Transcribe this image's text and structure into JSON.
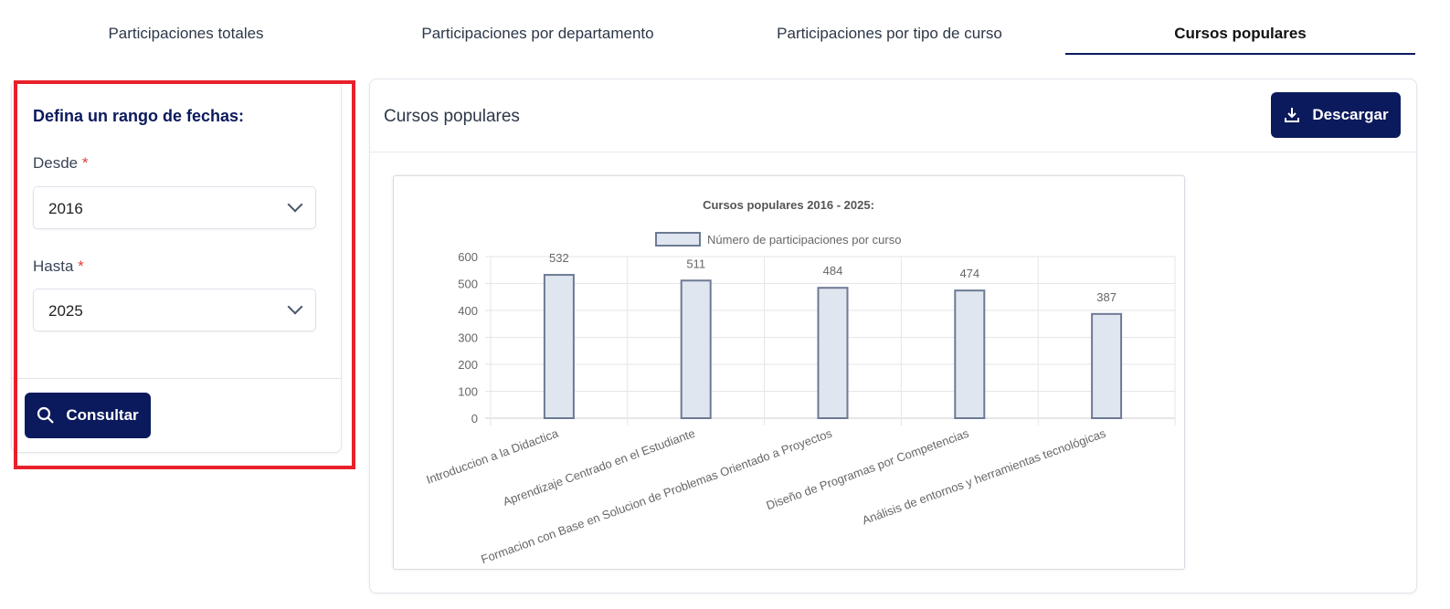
{
  "tabs": [
    {
      "label": "Participaciones totales"
    },
    {
      "label": "Participaciones por departamento"
    },
    {
      "label": "Participaciones por tipo de curso"
    },
    {
      "label": "Cursos populares"
    }
  ],
  "filter": {
    "title": "Defina un rango de fechas:",
    "from_label": "Desde",
    "from_value": "2016",
    "to_label": "Hasta",
    "to_value": "2025",
    "required_mark": "*",
    "submit_label": "Consultar"
  },
  "panel": {
    "title": "Cursos populares",
    "download_label": "Descargar"
  },
  "chart_data": {
    "type": "bar",
    "title": "Cursos populares 2016 - 2025:",
    "legend": "Número de participaciones por curso",
    "legend_position": "top",
    "categories": [
      "Introduccion a la Didactica",
      "Aprendizaje Centrado en el Estudiante",
      "Formacion con Base en Solucion de Problemas Orientado a Proyectos",
      "Diseño de Programas por Competencias",
      "Análisis de entornos y herramientas tecnológicas"
    ],
    "values": [
      532,
      511,
      484,
      474,
      387
    ],
    "ylim": [
      0,
      600
    ],
    "yticks": [
      0,
      100,
      200,
      300,
      400,
      500,
      600
    ],
    "grid": true,
    "bar_fill": "#dfe6ef",
    "bar_stroke": "#6c7a93"
  }
}
